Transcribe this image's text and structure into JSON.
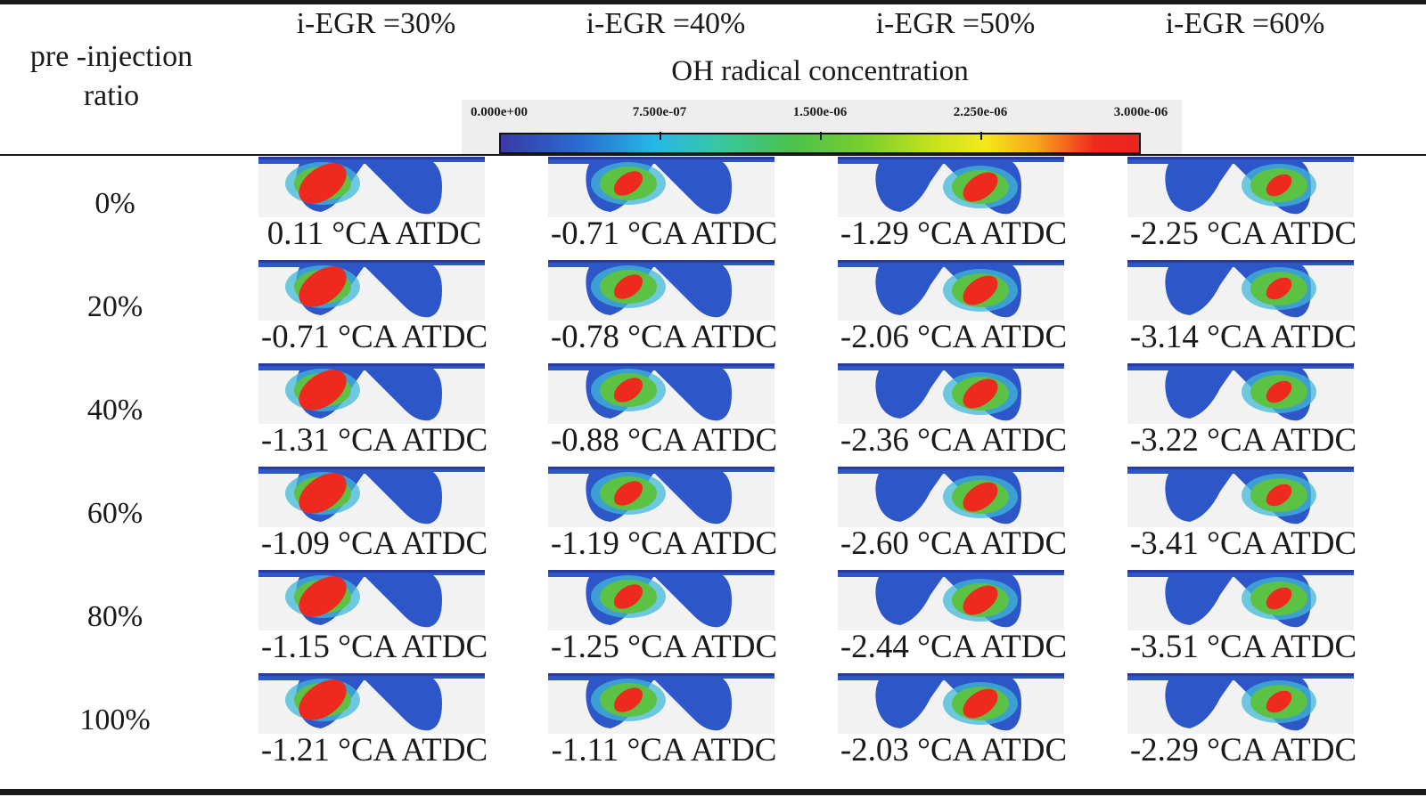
{
  "header": {
    "row_label": [
      "pre -injection",
      "ratio"
    ],
    "columns": [
      "i-EGR =30%",
      "i-EGR =40%",
      "i-EGR =50%",
      "i-EGR =60%"
    ]
  },
  "colorbar": {
    "title": "OH radical concentration",
    "ticks": [
      "0.000e+00",
      "7.500e-07",
      "1.500e-06",
      "2.250e-06",
      "3.000e-06"
    ],
    "min": 0.0,
    "max": 3e-06,
    "colors": [
      "#3a3aa8",
      "#25b8e6",
      "#4cc24a",
      "#f4e81a",
      "#e8241e"
    ]
  },
  "rows": [
    {
      "ratio": "0%",
      "values": [
        "0.11 °CA ATDC",
        "-0.71 °CA ATDC",
        "-1.29 °CA ATDC",
        "-2.25 °CA ATDC"
      ]
    },
    {
      "ratio": "20%",
      "values": [
        "-0.71 °CA ATDC",
        "-0.78 °CA ATDC",
        "-2.06 °CA ATDC",
        "-3.14 °CA ATDC"
      ]
    },
    {
      "ratio": "40%",
      "values": [
        "-1.31 °CA ATDC",
        "-0.88 °CA ATDC",
        "-2.36 °CA ATDC",
        "-3.22 °CA ATDC"
      ]
    },
    {
      "ratio": "60%",
      "values": [
        "-1.09 °CA ATDC",
        "-1.19 °CA ATDC",
        "-2.60 °CA ATDC",
        "-3.41 °CA ATDC"
      ]
    },
    {
      "ratio": "80%",
      "values": [
        "-1.15 °CA ATDC",
        "-1.25 °CA ATDC",
        "-2.44 °CA ATDC",
        "-3.51 °CA ATDC"
      ]
    },
    {
      "ratio": "100%",
      "values": [
        "-1.21 °CA ATDC",
        "-1.11 °CA ATDC",
        "-2.03 °CA ATDC",
        "-2.29 °CA ATDC"
      ]
    }
  ]
}
